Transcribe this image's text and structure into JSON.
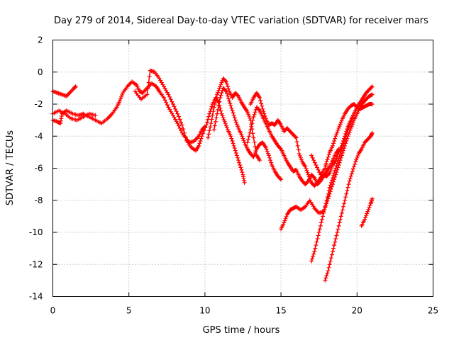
{
  "chart_data": {
    "type": "scatter",
    "title": "Day 279 of 2014, Sidereal Day-to-day VTEC variation (SDTVAR) for receiver mars",
    "xlabel": "GPS time / hours",
    "ylabel": "SDTVAR / TECUs",
    "xlim": [
      0,
      25
    ],
    "ylim": [
      -14,
      2
    ],
    "xticks": [
      0,
      5,
      10,
      15,
      20,
      25
    ],
    "yticks": [
      -14,
      -12,
      -10,
      -8,
      -6,
      -4,
      -2,
      0,
      2
    ],
    "grid": true,
    "marker": "+",
    "color": "#ff0000",
    "series": [
      {
        "points": [
          [
            0.0,
            -1.2
          ],
          [
            0.3,
            -1.3
          ],
          [
            0.6,
            -1.4
          ],
          [
            0.9,
            -1.5
          ],
          [
            1.1,
            -1.3
          ],
          [
            1.4,
            -1.0
          ],
          [
            1.5,
            -0.9
          ]
        ]
      },
      {
        "points": [
          [
            0.0,
            -3.0
          ],
          [
            0.3,
            -3.1
          ],
          [
            0.5,
            -3.2
          ],
          [
            0.6,
            -2.6
          ],
          [
            0.9,
            -2.4
          ],
          [
            1.3,
            -2.6
          ],
          [
            1.7,
            -2.7
          ],
          [
            2.0,
            -2.6
          ],
          [
            2.4,
            -2.8
          ],
          [
            2.8,
            -3.0
          ],
          [
            3.2,
            -3.2
          ],
          [
            3.6,
            -2.9
          ],
          [
            3.9,
            -2.6
          ],
          [
            4.2,
            -2.2
          ],
          [
            4.4,
            -1.8
          ],
          [
            4.6,
            -1.3
          ],
          [
            4.9,
            -0.9
          ],
          [
            5.2,
            -0.6
          ],
          [
            5.5,
            -0.8
          ],
          [
            5.7,
            -1.2
          ],
          [
            5.9,
            -1.3
          ],
          [
            6.2,
            -1.0
          ],
          [
            6.5,
            -0.7
          ],
          [
            6.8,
            -0.9
          ],
          [
            7.0,
            -1.2
          ],
          [
            7.3,
            -1.6
          ],
          [
            7.6,
            -2.2
          ],
          [
            7.9,
            -2.7
          ],
          [
            8.2,
            -3.2
          ],
          [
            8.5,
            -3.8
          ],
          [
            8.8,
            -4.2
          ],
          [
            9.0,
            -4.4
          ],
          [
            9.3,
            -4.3
          ],
          [
            9.6,
            -4.0
          ],
          [
            9.8,
            -3.6
          ],
          [
            10.0,
            -3.4
          ]
        ]
      },
      {
        "points": [
          [
            0.0,
            -2.6
          ],
          [
            0.4,
            -2.4
          ],
          [
            0.8,
            -2.6
          ],
          [
            1.2,
            -2.9
          ],
          [
            1.6,
            -3.0
          ],
          [
            2.0,
            -2.8
          ],
          [
            2.4,
            -2.6
          ],
          [
            2.8,
            -2.7
          ]
        ]
      },
      {
        "points": [
          [
            5.4,
            -1.2
          ],
          [
            5.8,
            -1.7
          ],
          [
            6.2,
            -1.4
          ],
          [
            6.4,
            0.1
          ],
          [
            6.7,
            0.0
          ],
          [
            7.0,
            -0.4
          ],
          [
            7.3,
            -0.9
          ],
          [
            7.6,
            -1.4
          ],
          [
            7.9,
            -2.0
          ],
          [
            8.2,
            -2.6
          ],
          [
            8.5,
            -3.3
          ],
          [
            8.8,
            -4.3
          ],
          [
            9.1,
            -4.7
          ],
          [
            9.4,
            -4.9
          ],
          [
            9.6,
            -4.6
          ],
          [
            9.8,
            -4.0
          ],
          [
            10.1,
            -3.3
          ],
          [
            10.3,
            -2.6
          ],
          [
            10.5,
            -2.0
          ],
          [
            10.7,
            -1.6
          ],
          [
            10.9,
            -1.9
          ],
          [
            11.1,
            -2.6
          ],
          [
            11.3,
            -3.1
          ],
          [
            11.5,
            -3.6
          ],
          [
            11.7,
            -4.0
          ],
          [
            11.9,
            -4.6
          ],
          [
            12.1,
            -5.2
          ],
          [
            12.3,
            -5.8
          ],
          [
            12.5,
            -6.4
          ],
          [
            12.6,
            -6.9
          ]
        ]
      },
      {
        "points": [
          [
            10.2,
            -4.1
          ],
          [
            10.4,
            -3.2
          ],
          [
            10.6,
            -2.2
          ],
          [
            10.8,
            -1.4
          ],
          [
            11.0,
            -0.9
          ],
          [
            11.2,
            -0.4
          ],
          [
            11.4,
            -0.6
          ],
          [
            11.6,
            -1.2
          ],
          [
            11.8,
            -1.6
          ],
          [
            12.0,
            -1.3
          ],
          [
            12.2,
            -1.5
          ],
          [
            12.4,
            -1.9
          ],
          [
            12.6,
            -2.2
          ],
          [
            12.8,
            -2.5
          ],
          [
            13.0,
            -3.0
          ],
          [
            13.2,
            -4.1
          ],
          [
            13.4,
            -5.2
          ],
          [
            13.6,
            -5.5
          ]
        ]
      },
      {
        "points": [
          [
            10.6,
            -3.6
          ],
          [
            10.8,
            -2.6
          ],
          [
            11.0,
            -1.6
          ],
          [
            11.2,
            -1.0
          ],
          [
            11.4,
            -1.2
          ],
          [
            11.6,
            -1.8
          ],
          [
            11.8,
            -2.4
          ],
          [
            12.0,
            -3.0
          ],
          [
            12.2,
            -3.5
          ],
          [
            12.4,
            -3.9
          ],
          [
            12.6,
            -4.4
          ],
          [
            12.8,
            -4.8
          ],
          [
            13.0,
            -5.1
          ],
          [
            13.2,
            -5.3
          ],
          [
            13.4,
            -4.8
          ],
          [
            13.6,
            -4.5
          ],
          [
            13.8,
            -4.4
          ],
          [
            14.0,
            -4.7
          ],
          [
            14.2,
            -5.2
          ],
          [
            14.4,
            -5.8
          ],
          [
            14.6,
            -6.2
          ],
          [
            14.8,
            -6.5
          ],
          [
            15.0,
            -6.7
          ]
        ]
      },
      {
        "points": [
          [
            12.8,
            -4.4
          ],
          [
            13.0,
            -3.6
          ],
          [
            13.2,
            -2.8
          ],
          [
            13.4,
            -2.2
          ],
          [
            13.6,
            -2.4
          ],
          [
            13.8,
            -2.8
          ],
          [
            14.0,
            -3.2
          ],
          [
            14.2,
            -3.6
          ],
          [
            14.4,
            -4.0
          ],
          [
            14.6,
            -4.3
          ],
          [
            14.8,
            -4.6
          ],
          [
            15.0,
            -4.8
          ],
          [
            15.2,
            -5.2
          ],
          [
            15.4,
            -5.6
          ],
          [
            15.6,
            -5.9
          ],
          [
            15.8,
            -6.2
          ],
          [
            16.0,
            -6.1
          ],
          [
            16.2,
            -6.5
          ],
          [
            16.4,
            -6.8
          ],
          [
            16.6,
            -7.0
          ],
          [
            16.8,
            -6.8
          ],
          [
            17.0,
            -6.4
          ],
          [
            17.2,
            -6.6
          ],
          [
            17.4,
            -7.0
          ],
          [
            17.6,
            -6.8
          ],
          [
            17.8,
            -6.5
          ],
          [
            18.0,
            -6.2
          ],
          [
            18.2,
            -5.9
          ],
          [
            18.4,
            -5.5
          ],
          [
            18.6,
            -5.1
          ],
          [
            18.8,
            -4.8
          ]
        ]
      },
      {
        "points": [
          [
            13.0,
            -2.0
          ],
          [
            13.2,
            -1.6
          ],
          [
            13.4,
            -1.3
          ],
          [
            13.6,
            -1.6
          ],
          [
            13.8,
            -2.3
          ],
          [
            14.0,
            -2.9
          ],
          [
            14.2,
            -3.3
          ],
          [
            14.4,
            -3.2
          ],
          [
            14.6,
            -3.3
          ],
          [
            14.8,
            -3.0
          ],
          [
            15.0,
            -3.3
          ],
          [
            15.2,
            -3.7
          ],
          [
            15.4,
            -3.5
          ],
          [
            15.6,
            -3.7
          ],
          [
            15.8,
            -3.9
          ],
          [
            16.0,
            -4.1
          ],
          [
            16.2,
            -5.1
          ],
          [
            16.4,
            -5.6
          ],
          [
            16.6,
            -5.9
          ],
          [
            16.8,
            -6.4
          ],
          [
            17.0,
            -6.9
          ],
          [
            17.2,
            -7.1
          ],
          [
            17.4,
            -6.9
          ],
          [
            17.6,
            -6.6
          ],
          [
            17.8,
            -6.4
          ],
          [
            18.0,
            -6.5
          ],
          [
            18.2,
            -6.3
          ],
          [
            18.4,
            -5.8
          ],
          [
            18.6,
            -5.5
          ],
          [
            18.8,
            -5.0
          ],
          [
            19.0,
            -4.6
          ],
          [
            19.2,
            -4.0
          ],
          [
            19.4,
            -3.4
          ],
          [
            19.6,
            -3.0
          ],
          [
            19.8,
            -2.6
          ],
          [
            20.0,
            -2.2
          ],
          [
            20.2,
            -1.9
          ],
          [
            20.4,
            -1.6
          ],
          [
            20.6,
            -1.3
          ],
          [
            20.8,
            -1.1
          ],
          [
            21.0,
            -0.9
          ]
        ]
      },
      {
        "points": [
          [
            15.0,
            -9.8
          ],
          [
            15.2,
            -9.4
          ],
          [
            15.4,
            -8.9
          ],
          [
            15.6,
            -8.6
          ],
          [
            15.8,
            -8.5
          ],
          [
            16.0,
            -8.4
          ],
          [
            16.3,
            -8.6
          ],
          [
            16.6,
            -8.4
          ],
          [
            16.9,
            -8.0
          ],
          [
            17.2,
            -8.5
          ],
          [
            17.5,
            -8.8
          ],
          [
            17.8,
            -8.7
          ],
          [
            18.0,
            -8.2
          ],
          [
            18.2,
            -7.6
          ],
          [
            18.4,
            -7.0
          ],
          [
            18.6,
            -6.4
          ],
          [
            18.8,
            -5.8
          ],
          [
            19.0,
            -5.2
          ],
          [
            19.2,
            -4.6
          ],
          [
            19.4,
            -4.0
          ],
          [
            19.6,
            -3.5
          ],
          [
            19.8,
            -3.0
          ],
          [
            20.0,
            -2.6
          ],
          [
            20.2,
            -2.2
          ],
          [
            20.4,
            -1.9
          ],
          [
            20.6,
            -1.7
          ],
          [
            20.8,
            -1.5
          ],
          [
            21.0,
            -1.4
          ]
        ]
      },
      {
        "points": [
          [
            17.0,
            -5.2
          ],
          [
            17.3,
            -5.8
          ],
          [
            17.6,
            -6.4
          ],
          [
            17.9,
            -6.0
          ],
          [
            18.0,
            -5.6
          ],
          [
            18.2,
            -5.0
          ],
          [
            18.4,
            -4.6
          ],
          [
            18.6,
            -4.0
          ],
          [
            18.8,
            -3.5
          ],
          [
            19.0,
            -3.0
          ],
          [
            19.2,
            -2.6
          ],
          [
            19.4,
            -2.3
          ],
          [
            19.6,
            -2.1
          ],
          [
            19.8,
            -2.0
          ],
          [
            20.0,
            -2.2
          ],
          [
            20.2,
            -2.3
          ],
          [
            20.4,
            -2.2
          ],
          [
            20.6,
            -2.1
          ],
          [
            20.8,
            -2.0
          ],
          [
            21.0,
            -2.0
          ]
        ]
      },
      {
        "points": [
          [
            17.0,
            -11.8
          ],
          [
            17.2,
            -11.2
          ],
          [
            17.4,
            -10.4
          ],
          [
            17.6,
            -9.6
          ],
          [
            17.8,
            -8.8
          ],
          [
            18.0,
            -8.0
          ],
          [
            18.2,
            -7.2
          ],
          [
            18.4,
            -6.6
          ],
          [
            18.6,
            -6.0
          ],
          [
            18.8,
            -5.4
          ],
          [
            19.0,
            -4.8
          ],
          [
            19.2,
            -4.2
          ],
          [
            19.4,
            -3.6
          ],
          [
            19.6,
            -3.1
          ],
          [
            19.8,
            -2.6
          ],
          [
            20.0,
            -2.2
          ]
        ]
      },
      {
        "points": [
          [
            17.9,
            -13.0
          ],
          [
            18.1,
            -12.4
          ],
          [
            18.3,
            -11.6
          ],
          [
            18.5,
            -10.8
          ],
          [
            18.7,
            -10.0
          ],
          [
            18.9,
            -9.2
          ],
          [
            19.1,
            -8.4
          ],
          [
            19.3,
            -7.6
          ],
          [
            19.5,
            -6.8
          ],
          [
            19.7,
            -6.2
          ],
          [
            19.9,
            -5.6
          ],
          [
            20.1,
            -5.1
          ],
          [
            20.3,
            -4.8
          ],
          [
            20.5,
            -4.4
          ],
          [
            20.7,
            -4.2
          ],
          [
            20.9,
            -4.0
          ],
          [
            21.0,
            -3.8
          ]
        ]
      },
      {
        "points": [
          [
            20.3,
            -9.6
          ],
          [
            20.5,
            -9.2
          ],
          [
            20.7,
            -8.7
          ],
          [
            20.9,
            -8.2
          ],
          [
            21.0,
            -7.9
          ]
        ]
      }
    ]
  }
}
